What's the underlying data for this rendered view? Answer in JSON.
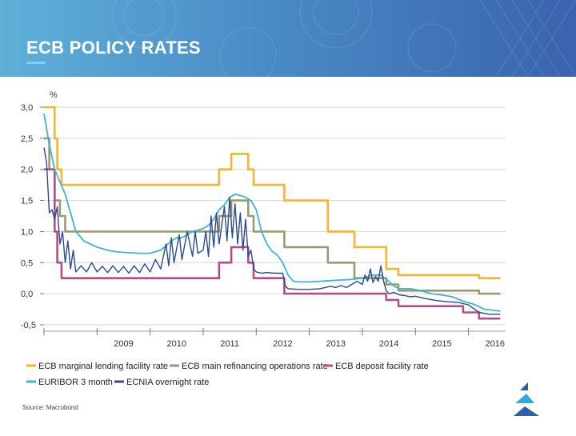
{
  "title": "ECB POLICY RATES",
  "colors": {
    "marginal": "#f2b531",
    "refi": "#9a9a70",
    "deposit": "#b44e86",
    "euribor": "#3cb4d6",
    "eonia": "#2c4a8c"
  },
  "chart_data": {
    "type": "line",
    "title": "",
    "ylabel": "%",
    "xlabel": "",
    "ylim": [
      -0.5,
      3.0
    ],
    "xlim": [
      2008.0,
      2016.7
    ],
    "yticks": [
      "3,0",
      "2,5",
      "2,0",
      "1,5",
      "1,0",
      "0,5",
      "0,0",
      "-0,5"
    ],
    "ytick_values": [
      3.0,
      2.5,
      2.0,
      1.5,
      1.0,
      0.5,
      0.0,
      -0.5
    ],
    "xticks": [
      "2009",
      "2010",
      "2011",
      "2012",
      "2013",
      "2014",
      "2015",
      "2016"
    ],
    "xtick_values": [
      2009.5,
      2010.5,
      2011.5,
      2012.5,
      2013.5,
      2014.5,
      2015.5,
      2016.5
    ],
    "grid": true,
    "legend_position": "bottom",
    "source": "Source: Macrobond",
    "series": [
      {
        "name": "ECB marginal lending facility rate",
        "key": "marginal",
        "step": true,
        "points": [
          [
            2008.0,
            3.0
          ],
          [
            2008.2,
            3.0
          ],
          [
            2008.2,
            2.5
          ],
          [
            2008.25,
            2.5
          ],
          [
            2008.25,
            2.0
          ],
          [
            2008.33,
            2.0
          ],
          [
            2008.33,
            1.75
          ],
          [
            2011.3,
            1.75
          ],
          [
            2011.3,
            2.0
          ],
          [
            2011.53,
            2.0
          ],
          [
            2011.53,
            2.25
          ],
          [
            2011.85,
            2.25
          ],
          [
            2011.85,
            2.0
          ],
          [
            2011.95,
            2.0
          ],
          [
            2011.95,
            1.75
          ],
          [
            2012.53,
            1.75
          ],
          [
            2012.53,
            1.5
          ],
          [
            2013.35,
            1.5
          ],
          [
            2013.35,
            1.0
          ],
          [
            2013.85,
            1.0
          ],
          [
            2013.85,
            0.75
          ],
          [
            2014.45,
            0.75
          ],
          [
            2014.45,
            0.4
          ],
          [
            2014.68,
            0.4
          ],
          [
            2014.68,
            0.3
          ],
          [
            2016.2,
            0.3
          ],
          [
            2016.2,
            0.25
          ],
          [
            2016.6,
            0.25
          ]
        ]
      },
      {
        "name": "ECB main refinancing operations rate",
        "key": "refi",
        "step": true,
        "points": [
          [
            2008.0,
            2.5
          ],
          [
            2008.1,
            2.5
          ],
          [
            2008.1,
            2.0
          ],
          [
            2008.2,
            2.0
          ],
          [
            2008.2,
            1.5
          ],
          [
            2008.3,
            1.5
          ],
          [
            2008.3,
            1.25
          ],
          [
            2008.4,
            1.25
          ],
          [
            2008.4,
            1.0
          ],
          [
            2011.3,
            1.0
          ],
          [
            2011.3,
            1.25
          ],
          [
            2011.53,
            1.25
          ],
          [
            2011.53,
            1.5
          ],
          [
            2011.85,
            1.5
          ],
          [
            2011.85,
            1.25
          ],
          [
            2011.95,
            1.25
          ],
          [
            2011.95,
            1.0
          ],
          [
            2012.53,
            1.0
          ],
          [
            2012.53,
            0.75
          ],
          [
            2013.35,
            0.75
          ],
          [
            2013.35,
            0.5
          ],
          [
            2013.85,
            0.5
          ],
          [
            2013.85,
            0.25
          ],
          [
            2014.45,
            0.25
          ],
          [
            2014.45,
            0.15
          ],
          [
            2014.68,
            0.15
          ],
          [
            2014.68,
            0.05
          ],
          [
            2016.2,
            0.05
          ],
          [
            2016.2,
            0.0
          ],
          [
            2016.6,
            0.0
          ]
        ]
      },
      {
        "name": "ECB deposit facility rate",
        "key": "deposit",
        "step": true,
        "points": [
          [
            2008.0,
            2.0
          ],
          [
            2008.2,
            2.0
          ],
          [
            2008.2,
            1.0
          ],
          [
            2008.25,
            1.0
          ],
          [
            2008.25,
            0.5
          ],
          [
            2008.33,
            0.5
          ],
          [
            2008.33,
            0.25
          ],
          [
            2011.3,
            0.25
          ],
          [
            2011.3,
            0.5
          ],
          [
            2011.53,
            0.5
          ],
          [
            2011.53,
            0.75
          ],
          [
            2011.85,
            0.75
          ],
          [
            2011.85,
            0.5
          ],
          [
            2011.95,
            0.5
          ],
          [
            2011.95,
            0.25
          ],
          [
            2012.53,
            0.25
          ],
          [
            2012.53,
            0.0
          ],
          [
            2014.45,
            0.0
          ],
          [
            2014.45,
            -0.1
          ],
          [
            2014.68,
            -0.1
          ],
          [
            2014.68,
            -0.2
          ],
          [
            2015.9,
            -0.2
          ],
          [
            2015.9,
            -0.3
          ],
          [
            2016.2,
            -0.3
          ],
          [
            2016.2,
            -0.4
          ],
          [
            2016.6,
            -0.4
          ]
        ]
      },
      {
        "name": "EURIBOR 3 month",
        "key": "euribor",
        "step": false,
        "points": [
          [
            2008.0,
            2.9
          ],
          [
            2008.1,
            2.4
          ],
          [
            2008.2,
            2.0
          ],
          [
            2008.3,
            1.8
          ],
          [
            2008.4,
            1.6
          ],
          [
            2008.5,
            1.3
          ],
          [
            2008.6,
            1.0
          ],
          [
            2008.75,
            0.85
          ],
          [
            2009.0,
            0.75
          ],
          [
            2009.2,
            0.7
          ],
          [
            2009.4,
            0.67
          ],
          [
            2009.6,
            0.66
          ],
          [
            2009.8,
            0.65
          ],
          [
            2010.0,
            0.65
          ],
          [
            2010.2,
            0.7
          ],
          [
            2010.3,
            0.77
          ],
          [
            2010.4,
            0.85
          ],
          [
            2010.5,
            0.9
          ],
          [
            2010.6,
            0.9
          ],
          [
            2010.7,
            0.95
          ],
          [
            2010.8,
            1.0
          ],
          [
            2010.9,
            1.02
          ],
          [
            2011.0,
            1.05
          ],
          [
            2011.1,
            1.1
          ],
          [
            2011.2,
            1.2
          ],
          [
            2011.3,
            1.35
          ],
          [
            2011.4,
            1.43
          ],
          [
            2011.5,
            1.55
          ],
          [
            2011.6,
            1.6
          ],
          [
            2011.7,
            1.58
          ],
          [
            2011.8,
            1.55
          ],
          [
            2011.9,
            1.5
          ],
          [
            2012.0,
            1.35
          ],
          [
            2012.1,
            1.0
          ],
          [
            2012.2,
            0.8
          ],
          [
            2012.3,
            0.68
          ],
          [
            2012.4,
            0.62
          ],
          [
            2012.5,
            0.5
          ],
          [
            2012.6,
            0.3
          ],
          [
            2012.7,
            0.2
          ],
          [
            2012.8,
            0.19
          ],
          [
            2013.0,
            0.19
          ],
          [
            2013.2,
            0.2
          ],
          [
            2013.4,
            0.21
          ],
          [
            2013.6,
            0.22
          ],
          [
            2013.8,
            0.23
          ],
          [
            2014.0,
            0.25
          ],
          [
            2014.2,
            0.3
          ],
          [
            2014.35,
            0.3
          ],
          [
            2014.5,
            0.2
          ],
          [
            2014.6,
            0.12
          ],
          [
            2014.7,
            0.08
          ],
          [
            2014.9,
            0.08
          ],
          [
            2015.1,
            0.05
          ],
          [
            2015.3,
            0.0
          ],
          [
            2015.5,
            -0.02
          ],
          [
            2015.7,
            -0.05
          ],
          [
            2015.9,
            -0.12
          ],
          [
            2016.1,
            -0.17
          ],
          [
            2016.3,
            -0.25
          ],
          [
            2016.6,
            -0.28
          ]
        ]
      },
      {
        "name": "ECNIA overnight rate",
        "key": "eonia",
        "step": false,
        "points": [
          [
            2008.0,
            2.35
          ],
          [
            2008.05,
            2.1
          ],
          [
            2008.1,
            1.3
          ],
          [
            2008.15,
            1.35
          ],
          [
            2008.2,
            1.2
          ],
          [
            2008.25,
            1.4
          ],
          [
            2008.3,
            0.8
          ],
          [
            2008.35,
            1.0
          ],
          [
            2008.4,
            0.5
          ],
          [
            2008.45,
            0.85
          ],
          [
            2008.5,
            0.4
          ],
          [
            2008.55,
            0.7
          ],
          [
            2008.6,
            0.35
          ],
          [
            2008.7,
            0.45
          ],
          [
            2008.8,
            0.35
          ],
          [
            2008.9,
            0.5
          ],
          [
            2009.0,
            0.35
          ],
          [
            2009.1,
            0.44
          ],
          [
            2009.2,
            0.34
          ],
          [
            2009.3,
            0.45
          ],
          [
            2009.4,
            0.34
          ],
          [
            2009.5,
            0.44
          ],
          [
            2009.6,
            0.33
          ],
          [
            2009.7,
            0.45
          ],
          [
            2009.8,
            0.34
          ],
          [
            2009.9,
            0.48
          ],
          [
            2010.0,
            0.35
          ],
          [
            2010.1,
            0.55
          ],
          [
            2010.2,
            0.4
          ],
          [
            2010.3,
            0.8
          ],
          [
            2010.35,
            0.45
          ],
          [
            2010.4,
            0.9
          ],
          [
            2010.45,
            0.5
          ],
          [
            2010.55,
            0.95
          ],
          [
            2010.6,
            0.55
          ],
          [
            2010.7,
            1.0
          ],
          [
            2010.8,
            0.6
          ],
          [
            2010.85,
            1.0
          ],
          [
            2010.9,
            0.65
          ],
          [
            2011.0,
            0.7
          ],
          [
            2011.05,
            1.0
          ],
          [
            2011.1,
            0.6
          ],
          [
            2011.15,
            1.25
          ],
          [
            2011.2,
            0.75
          ],
          [
            2011.25,
            1.3
          ],
          [
            2011.3,
            0.8
          ],
          [
            2011.4,
            1.4
          ],
          [
            2011.45,
            0.85
          ],
          [
            2011.5,
            1.55
          ],
          [
            2011.55,
            0.9
          ],
          [
            2011.6,
            1.45
          ],
          [
            2011.65,
            0.8
          ],
          [
            2011.7,
            1.3
          ],
          [
            2011.75,
            0.7
          ],
          [
            2011.8,
            1.2
          ],
          [
            2011.85,
            0.6
          ],
          [
            2011.9,
            0.7
          ],
          [
            2011.95,
            0.4
          ],
          [
            2012.0,
            0.35
          ],
          [
            2012.1,
            0.33
          ],
          [
            2012.2,
            0.34
          ],
          [
            2012.35,
            0.33
          ],
          [
            2012.5,
            0.33
          ],
          [
            2012.55,
            0.12
          ],
          [
            2012.6,
            0.08
          ],
          [
            2012.8,
            0.07
          ],
          [
            2013.0,
            0.07
          ],
          [
            2013.2,
            0.08
          ],
          [
            2013.3,
            0.1
          ],
          [
            2013.4,
            0.12
          ],
          [
            2013.5,
            0.1
          ],
          [
            2013.6,
            0.13
          ],
          [
            2013.7,
            0.1
          ],
          [
            2013.8,
            0.15
          ],
          [
            2013.9,
            0.2
          ],
          [
            2014.0,
            0.15
          ],
          [
            2014.05,
            0.3
          ],
          [
            2014.1,
            0.2
          ],
          [
            2014.15,
            0.4
          ],
          [
            2014.2,
            0.18
          ],
          [
            2014.25,
            0.28
          ],
          [
            2014.3,
            0.2
          ],
          [
            2014.35,
            0.45
          ],
          [
            2014.4,
            0.2
          ],
          [
            2014.45,
            0.05
          ],
          [
            2014.5,
            0.0
          ],
          [
            2014.6,
            0.02
          ],
          [
            2014.7,
            -0.02
          ],
          [
            2014.8,
            -0.03
          ],
          [
            2014.9,
            -0.05
          ],
          [
            2015.0,
            -0.04
          ],
          [
            2015.2,
            -0.08
          ],
          [
            2015.4,
            -0.11
          ],
          [
            2015.6,
            -0.13
          ],
          [
            2015.8,
            -0.14
          ],
          [
            2016.0,
            -0.18
          ],
          [
            2016.2,
            -0.3
          ],
          [
            2016.4,
            -0.33
          ],
          [
            2016.6,
            -0.33
          ]
        ]
      }
    ]
  },
  "legend": [
    {
      "key": "marginal",
      "label": "ECB marginal lending facility rate"
    },
    {
      "key": "refi",
      "label": "ECB main refinancing operations rate"
    },
    {
      "key": "deposit",
      "label": "ECB deposit facility rate"
    },
    {
      "key": "euribor",
      "label": "EURIBOR 3 month"
    },
    {
      "key": "eonia",
      "label": "ECNIA overnight rate"
    }
  ],
  "logo": {
    "icon": "triangle-logo-icon"
  }
}
